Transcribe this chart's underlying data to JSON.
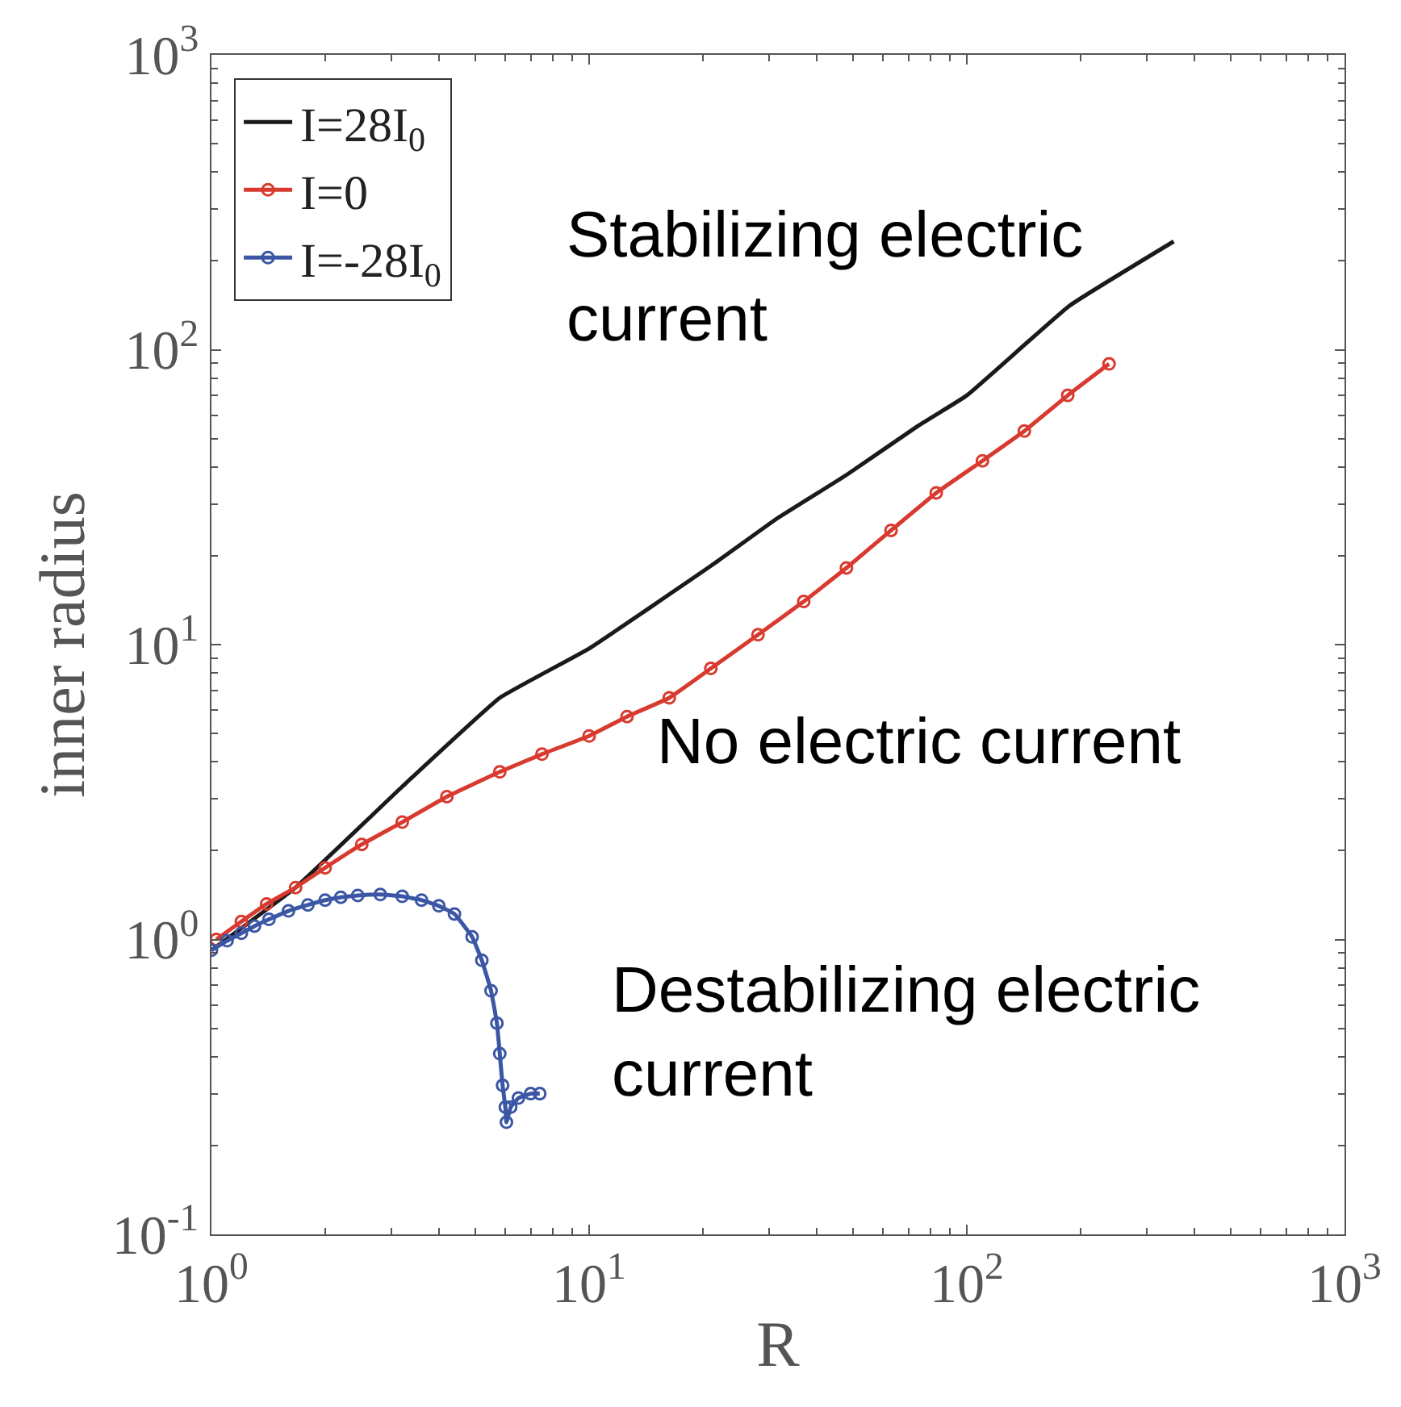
{
  "chart_data": {
    "type": "line",
    "xlabel": "R",
    "ylabel": "inner radius",
    "log": "xy",
    "grid": false,
    "legend": "top left",
    "xlim": [
      1,
      1000
    ],
    "ylim": [
      0.1,
      1000
    ],
    "xticks": [
      {
        "value": 1,
        "label": "10$^{0}$"
      },
      {
        "value": 10,
        "label": "10$^{1}$"
      },
      {
        "value": 100,
        "label": "10$^{2}$"
      },
      {
        "value": 1000,
        "label": "10$^{3}$"
      }
    ],
    "yticks": [
      {
        "value": 0.1,
        "label": "10$^{-1}$"
      },
      {
        "value": 1,
        "label": "10$^{0}$"
      },
      {
        "value": 10,
        "label": "10$^{1}$"
      },
      {
        "value": 100,
        "label": "10$^{2}$"
      },
      {
        "value": 1000,
        "label": "10$^{3}$"
      }
    ],
    "series": [
      {
        "name": "I=28I$_{0}$",
        "color": "#1a1a1a",
        "marker": "none",
        "x": [
          1,
          1.67,
          3.2,
          5.8,
          10,
          21.4,
          31.2,
          48,
          74,
          100,
          187,
          353
        ],
        "values": [
          0.92,
          1.5,
          3.3,
          6.6,
          9.7,
          18.8,
          26.6,
          37.6,
          55,
          70,
          141,
          233
        ]
      },
      {
        "name": "I=0",
        "color": "#d93a2f",
        "marker": "circle",
        "x": [
          1.03,
          1.2,
          1.4,
          1.67,
          2.0,
          2.5,
          3.2,
          4.2,
          5.8,
          7.5,
          10,
          12.6,
          16.3,
          21,
          28,
          37,
          48,
          63,
          83,
          110,
          142,
          185,
          238
        ],
        "values": [
          1.0,
          1.15,
          1.32,
          1.5,
          1.75,
          2.1,
          2.5,
          3.05,
          3.7,
          4.25,
          4.9,
          5.7,
          6.6,
          8.3,
          10.8,
          14,
          18.2,
          24.4,
          32.7,
          42,
          53,
          70,
          89.5
        ]
      },
      {
        "name": "I=-28I$_{0}$",
        "color": "#3b56a5",
        "marker": "circle",
        "x": [
          1,
          1.1,
          1.2,
          1.3,
          1.42,
          1.6,
          1.8,
          2.0,
          2.2,
          2.44,
          2.8,
          3.2,
          3.6,
          4.0,
          4.4,
          4.9,
          5.2,
          5.5,
          5.7,
          5.8,
          5.9,
          6.0,
          6.04,
          6.2,
          6.5,
          7.0,
          7.4
        ],
        "values": [
          0.92,
          0.99,
          1.05,
          1.11,
          1.17,
          1.25,
          1.31,
          1.36,
          1.39,
          1.41,
          1.42,
          1.4,
          1.36,
          1.3,
          1.22,
          1.02,
          0.85,
          0.67,
          0.52,
          0.41,
          0.32,
          0.27,
          0.24,
          0.27,
          0.29,
          0.3,
          0.3
        ]
      }
    ],
    "annotations": [
      "Stabilizing electric\ncurrent",
      "No electric current",
      "Destabilizing electric\ncurrent"
    ]
  }
}
